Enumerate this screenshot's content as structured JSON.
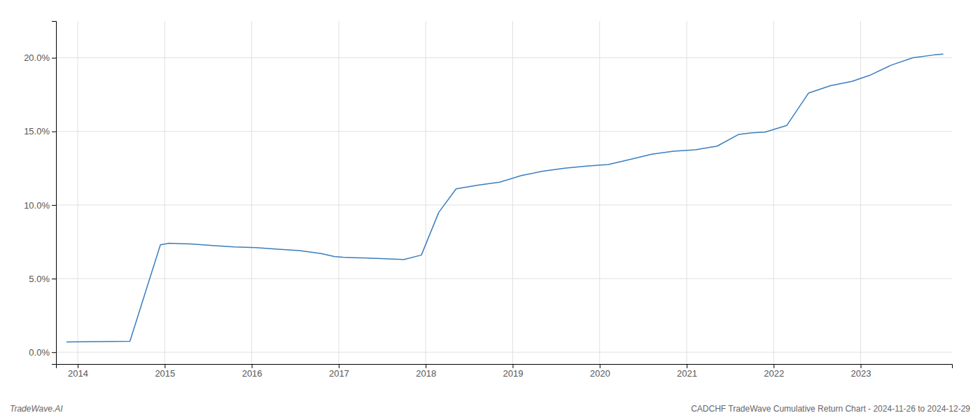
{
  "chart_data": {
    "type": "line",
    "x": [
      2013.87,
      2014.6,
      2014.95,
      2015.05,
      2015.3,
      2015.55,
      2015.8,
      2016.05,
      2016.3,
      2016.55,
      2016.8,
      2016.95,
      2017.05,
      2017.3,
      2017.55,
      2017.75,
      2017.95,
      2018.15,
      2018.35,
      2018.6,
      2018.85,
      2019.1,
      2019.35,
      2019.6,
      2019.85,
      2020.1,
      2020.35,
      2020.6,
      2020.85,
      2021.1,
      2021.35,
      2021.6,
      2021.75,
      2021.9,
      2022.15,
      2022.4,
      2022.65,
      2022.9,
      2023.1,
      2023.35,
      2023.6,
      2023.85,
      2023.95
    ],
    "values": [
      0.7,
      0.75,
      7.3,
      7.4,
      7.35,
      7.25,
      7.15,
      7.1,
      7.0,
      6.9,
      6.7,
      6.5,
      6.45,
      6.4,
      6.35,
      6.3,
      6.6,
      9.5,
      11.1,
      11.35,
      11.55,
      12.0,
      12.3,
      12.5,
      12.65,
      12.75,
      13.1,
      13.45,
      13.65,
      13.75,
      14.0,
      14.8,
      14.9,
      14.95,
      15.4,
      17.6,
      18.1,
      18.4,
      18.8,
      19.5,
      20.0,
      20.2,
      20.25
    ],
    "color": "#3a7ebf",
    "xlim": [
      2013.75,
      2024.05
    ],
    "ylim": [
      -0.8,
      22.5
    ],
    "xticks": [
      2014,
      2015,
      2016,
      2017,
      2018,
      2019,
      2020,
      2021,
      2022,
      2023
    ],
    "yticks": [
      {
        "value": 0.0,
        "label": "0.0%"
      },
      {
        "value": 5.0,
        "label": "5.0%"
      },
      {
        "value": 10.0,
        "label": "10.0%"
      },
      {
        "value": 15.0,
        "label": "15.0%"
      },
      {
        "value": 20.0,
        "label": "20.0%"
      }
    ],
    "grid": true,
    "annotations": [
      "TradeWave.AI",
      "CADCHF TradeWave Cumulative Return Chart - 2024-11-26 to 2024-12-29"
    ]
  }
}
